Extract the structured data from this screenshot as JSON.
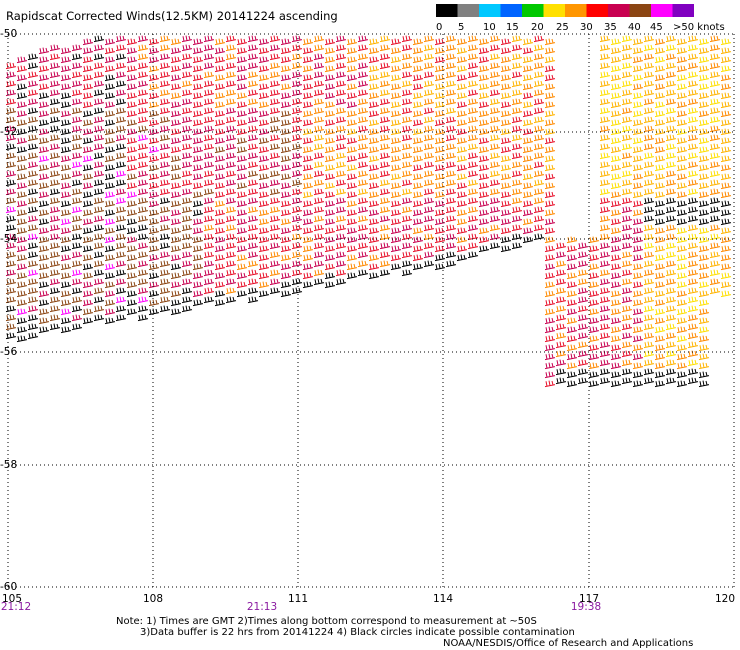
{
  "title": "Rapidscat Corrected Winds(12.5KM) 20141224 ascending",
  "legend": {
    "labels": [
      "0",
      "5",
      "10",
      "15",
      "20",
      "25",
      "30",
      "35",
      "40",
      "45",
      ">50 knots"
    ],
    "colors": [
      "#000000",
      "#808080",
      "#00c8ff",
      "#0064ff",
      "#00c800",
      "#ffe000",
      "#ff9600",
      "#ff0000",
      "#c80050",
      "#8b4513",
      "#ff00ff",
      "#8000c0"
    ]
  },
  "map": {
    "lon_labels": [
      "105",
      "108",
      "111",
      "114",
      "117",
      "120"
    ],
    "lat_labels": [
      "-50",
      "-52",
      "-54",
      "-56",
      "-58",
      "-60"
    ],
    "time_labels": [
      "21:12",
      "21:13",
      "19:38"
    ]
  },
  "notes": {
    "line1": "Note: 1) Times are GMT 2)Times along bottom correspond to measurement at ~50S",
    "line2": "3)Data buffer is 22 hrs from 20141224 4) Black circles indicate possible contamination"
  },
  "credit": "NOAA/NESDIS/Office of Research and Applications"
}
